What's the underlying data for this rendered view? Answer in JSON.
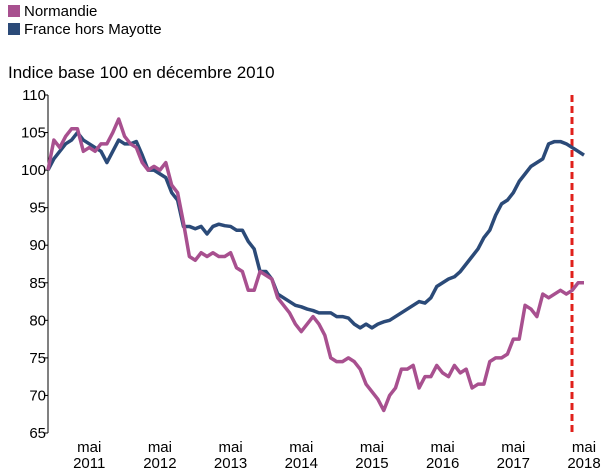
{
  "chart_data": {
    "type": "line",
    "subtitle": "Indice base 100 en décembre 2010",
    "categories": [
      null,
      null,
      null,
      null,
      null,
      null,
      null,
      "mai 2011",
      null,
      null,
      null,
      null,
      null,
      null,
      null,
      null,
      null,
      null,
      null,
      "mai 2012",
      null,
      null,
      null,
      null,
      null,
      null,
      null,
      null,
      null,
      null,
      null,
      "mai 2013",
      null,
      null,
      null,
      null,
      null,
      null,
      null,
      null,
      null,
      null,
      null,
      "mai 2014",
      null,
      null,
      null,
      null,
      null,
      null,
      null,
      null,
      null,
      null,
      null,
      "mai 2015",
      null,
      null,
      null,
      null,
      null,
      null,
      null,
      null,
      null,
      null,
      null,
      "mai 2016",
      null,
      null,
      null,
      null,
      null,
      null,
      null,
      null,
      null,
      null,
      null,
      "mai 2017",
      null,
      null,
      null,
      null,
      null,
      null,
      null,
      null,
      null,
      null,
      null,
      "mai 2018"
    ],
    "series": [
      {
        "name": "Normandie",
        "color": "#a8508f",
        "values": [
          100,
          104,
          103,
          104.5,
          105.5,
          105.5,
          102.5,
          103,
          102.5,
          103.5,
          103.5,
          105,
          106.8,
          104.5,
          103.5,
          103,
          101,
          100,
          100.5,
          100,
          101,
          98,
          97,
          93,
          88.5,
          88,
          89,
          88.5,
          89,
          88.5,
          88.5,
          89,
          87,
          86.5,
          84,
          84,
          86.5,
          86,
          85.5,
          83,
          82,
          81,
          79.5,
          78.5,
          79.5,
          80.5,
          79.5,
          78,
          75,
          74.5,
          74.5,
          75,
          74.5,
          73.5,
          71.5,
          70.5,
          69.5,
          68,
          70,
          71,
          73.5,
          73.5,
          74,
          71,
          72.5,
          72.5,
          74,
          73,
          72.5,
          74,
          73,
          73.5,
          71,
          71.5,
          71.5,
          74.5,
          75,
          75,
          75.5,
          77.5,
          77.5,
          82,
          81.5,
          80.5,
          83.5,
          83,
          83.5,
          84,
          83.5,
          84,
          85,
          85
        ]
      },
      {
        "name": "France hors Mayotte",
        "color": "#2b4a78",
        "values": [
          100,
          101.5,
          102.5,
          103.5,
          104,
          105,
          104,
          103.5,
          103,
          102.5,
          101,
          102.5,
          104,
          103.5,
          103.5,
          103.8,
          102,
          100,
          100,
          99.5,
          99,
          97,
          96,
          92.5,
          92.5,
          92.2,
          92.5,
          91.5,
          92.5,
          92.8,
          92.6,
          92.5,
          92,
          92,
          90.5,
          89.5,
          86.5,
          86.5,
          85.5,
          83.5,
          83,
          82.5,
          82,
          81.8,
          81.5,
          81.3,
          81,
          81,
          81,
          80.5,
          80.5,
          80.3,
          79.5,
          79,
          79.5,
          79,
          79.5,
          79.8,
          80,
          80.5,
          81,
          81.5,
          82,
          82.5,
          82.3,
          83,
          84.5,
          85,
          85.5,
          85.8,
          86.5,
          87.5,
          88.5,
          89.5,
          91,
          92,
          94,
          95.5,
          96,
          97,
          98.5,
          99.5,
          100.5,
          101,
          101.5,
          103.5,
          103.8,
          103.8,
          103.5,
          103,
          102.5,
          102
        ]
      }
    ],
    "ylim": [
      65,
      110
    ],
    "yticks": [
      65,
      70,
      75,
      80,
      85,
      90,
      95,
      100,
      105,
      110
    ],
    "grid": false
  }
}
